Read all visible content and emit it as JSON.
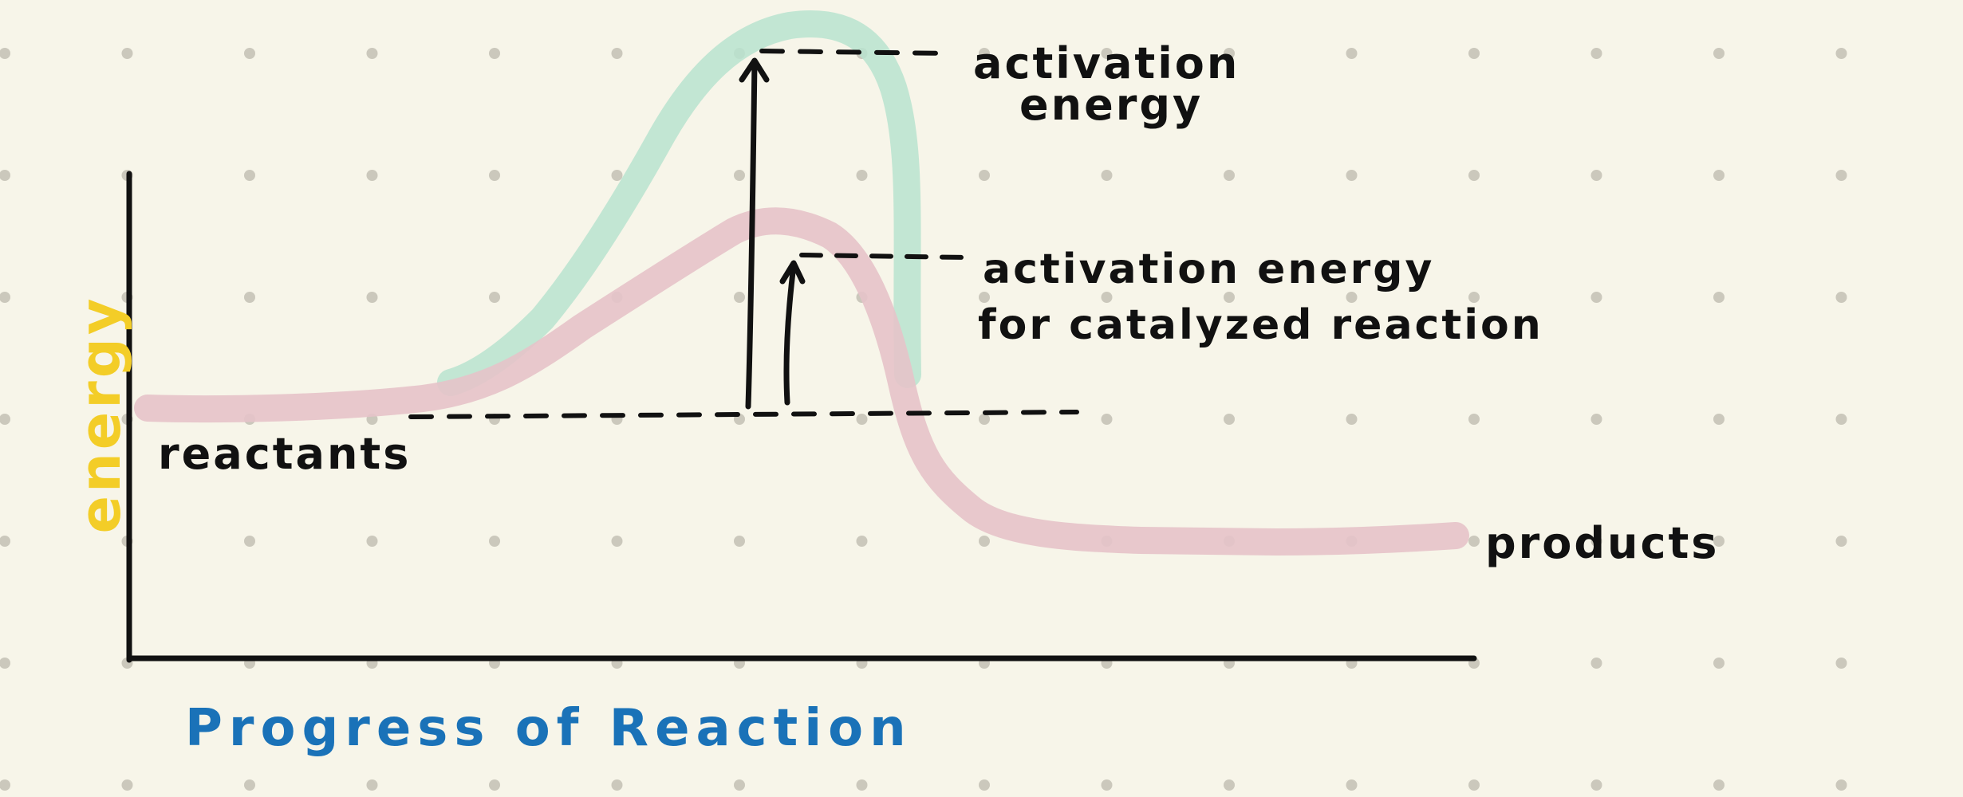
{
  "labels": {
    "y_axis": "energy",
    "x_axis": "Progress of Reaction",
    "reactants": "reactants",
    "products": "products",
    "activation_energy_line1": "activation",
    "activation_energy_line2": "energy",
    "catalyzed_line1": "activation energy",
    "catalyzed_line2": "for catalyzed reaction"
  },
  "colors": {
    "background": "#f7f5e9",
    "dots": "#cbc8bc",
    "uncatalyzed_curve": "#b9e3cf",
    "catalyzed_curve": "#e6c3c9",
    "axes": "#111111",
    "y_axis_label": "#f3cd27",
    "x_axis_label": "#1a72b8",
    "text": "#111111"
  }
}
